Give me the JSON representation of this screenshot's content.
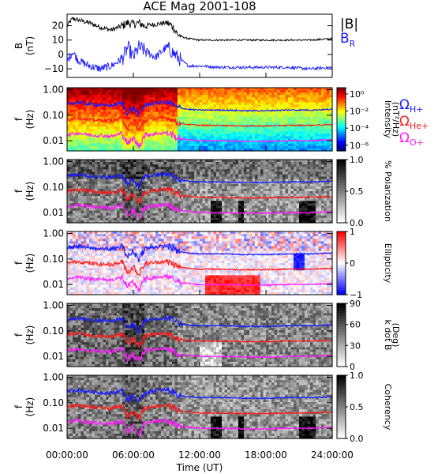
{
  "title": "ACE Mag 2001-108",
  "xlabel": "Time (UT)",
  "x_ticks": [
    "00:00:00",
    "06:00:00",
    "12:00:00",
    "18:00:00",
    "24:00:00"
  ],
  "colors": {
    "Bmag": "#000000",
    "BR": "#1a1aff",
    "H": "#1a1aff",
    "He": "#ff1a1a",
    "O": "#ff1aff"
  },
  "legend_top": {
    "bmag": "|B|",
    "br_main": "B",
    "br_sub": "R"
  },
  "legend_ion": {
    "symbol": "Ω",
    "h_sub": "H+",
    "he_sub": "He+",
    "o_sub": "O+"
  },
  "panel1": {
    "ylabel1": "B",
    "ylabel2": "(nT)",
    "yticks": [
      "20",
      "10",
      "0",
      "−10"
    ]
  },
  "freq_ylabel1": "f",
  "freq_ylabel2": "(Hz)",
  "freq_ticks": [
    "1.00",
    "0.10",
    "0.01"
  ],
  "colorbars": [
    {
      "label": "Intensity",
      "label2": "(nT²/Hz)",
      "ticks": [
        "10⁰",
        "10⁻²",
        "10⁻⁴",
        "10⁻⁶"
      ]
    },
    {
      "label": "% Polarization",
      "label2": "",
      "ticks": [
        "1.0",
        "0.5",
        "0.0"
      ]
    },
    {
      "label": "Ellipticity",
      "label2": "",
      "ticks": [
        "1",
        "0",
        "−1"
      ]
    },
    {
      "label": "k dot B",
      "label2": "(Deg)",
      "ticks": [
        "90",
        "60",
        "30",
        "0"
      ]
    },
    {
      "label": "Coherency",
      "label2": "",
      "ticks": [
        "1.0",
        "0.5",
        "0.0"
      ]
    }
  ],
  "chart_data": {
    "type": "line",
    "title": "ACE Mag 2001-108",
    "xlabel": "Time (UT)",
    "x_range_hours": [
      0,
      24
    ],
    "panels": [
      {
        "id": "field",
        "ylabel": "B (nT)",
        "ylim": [
          -16,
          28
        ],
        "series": [
          {
            "name": "|B|",
            "x": [
              0,
              0.5,
              1,
              2,
              3,
              4,
              5,
              5.5,
              6,
              6.5,
              7,
              8,
              9,
              9.5,
              10,
              10.5,
              11,
              12,
              14,
              16,
              18,
              20,
              22,
              24
            ],
            "values": [
              20,
              25,
              24,
              22,
              19,
              17,
              20,
              22,
              21,
              22,
              20,
              21,
              22,
              20,
              14,
              12,
              11,
              10,
              10,
              10,
              10,
              10,
              10,
              11
            ]
          },
          {
            "name": "B_R",
            "x": [
              0,
              0.5,
              1,
              2,
              3,
              4,
              5,
              5.5,
              6,
              6.5,
              7,
              8,
              9,
              9.5,
              10,
              10.5,
              11,
              12,
              14,
              16,
              18,
              20,
              22,
              24
            ],
            "values": [
              -5,
              2,
              -4,
              -8,
              -10,
              -8,
              -3,
              5,
              -2,
              5,
              3,
              -2,
              5,
              2,
              -2,
              -5,
              -8,
              -8,
              -9,
              -9,
              -9,
              -9,
              -10,
              -9
            ]
          }
        ]
      },
      {
        "id": "frequency-curves",
        "ylabel": "f (Hz)",
        "yscale": "log",
        "ylim": [
          0.004,
          1.2
        ],
        "series": [
          {
            "name": "Ω_H+",
            "x": [
              0,
              1,
              2,
              3,
              4,
              5,
              5.5,
              6,
              6.5,
              7,
              8,
              9,
              9.5,
              10,
              11,
              12,
              14,
              16,
              18,
              20,
              22,
              24
            ],
            "values": [
              0.28,
              0.32,
              0.27,
              0.25,
              0.24,
              0.3,
              0.12,
              0.2,
              0.1,
              0.25,
              0.3,
              0.32,
              0.28,
              0.2,
              0.17,
              0.16,
              0.16,
              0.15,
              0.15,
              0.16,
              0.16,
              0.17
            ]
          },
          {
            "name": "Ω_He+",
            "x": [
              0,
              1,
              2,
              3,
              4,
              5,
              5.5,
              6,
              6.5,
              7,
              8,
              9,
              9.5,
              10,
              11,
              12,
              14,
              16,
              18,
              20,
              22,
              24
            ],
            "values": [
              0.07,
              0.08,
              0.068,
              0.062,
              0.06,
              0.075,
              0.03,
              0.05,
              0.025,
              0.062,
              0.075,
              0.08,
              0.07,
              0.05,
              0.043,
              0.04,
              0.04,
              0.038,
              0.038,
              0.04,
              0.04,
              0.043
            ]
          },
          {
            "name": "Ω_O+",
            "x": [
              0,
              1,
              2,
              3,
              4,
              5,
              5.5,
              6,
              6.5,
              7,
              8,
              9,
              9.5,
              10,
              11,
              12,
              14,
              16,
              18,
              20,
              22,
              24
            ],
            "values": [
              0.017,
              0.02,
              0.017,
              0.016,
              0.015,
              0.019,
              0.0075,
              0.0125,
              0.006,
              0.016,
              0.019,
              0.02,
              0.0175,
              0.0125,
              0.011,
              0.01,
              0.01,
              0.0095,
              0.0095,
              0.01,
              0.01,
              0.011
            ]
          }
        ]
      }
    ],
    "heatmaps": [
      "Intensity (nT²/Hz)",
      "% Polarization",
      "Ellipticity",
      "k dot B (Deg)",
      "Coherency"
    ]
  }
}
